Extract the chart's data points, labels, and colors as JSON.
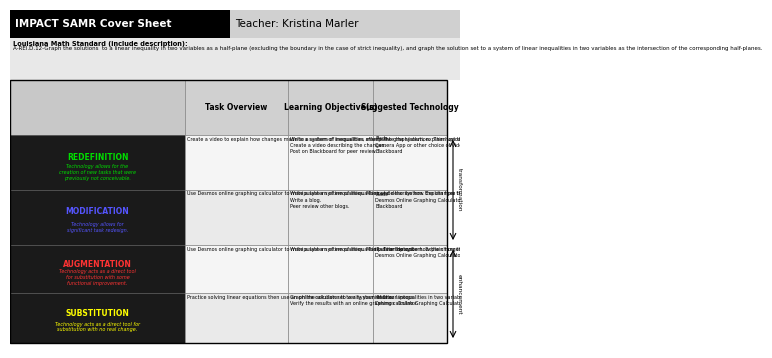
{
  "title_left": "IMPACT SAMR Cover Sheet",
  "title_right": "Teacher: Kristina Marler",
  "standard_label": "Louisiana Math Standard (include description):",
  "standard_text": "A-REI.D.12-Graph the solutions  to a linear inequality in two variables as a half-plane (excluding the boundary in the case of strict inequality), and graph the solution set to a system of linear inequalities in two variables as the intersection of the corresponding half-planes.",
  "col_headers": [
    "Task Overview",
    "Learning Objective(s)",
    "Suggested Technology"
  ],
  "rows": [
    {
      "label": "REDEFINITION",
      "sublabel": "Technology allows for the\ncreation of new tasks that were\npreviously not conceivable.",
      "label_color": "#00dd00",
      "task": "Create a video to explain how changes made to a system of inequalities affects the graph/solution.  Then upload the video to Blackboard for peer evaluation.",
      "objective": "Write a system of inequalities, manipulate the system, explain how the manipulations changed the solution.\nCreate a video describing the changes.\nPost on Blackboard for peer review.",
      "technology": "iPads\nCamera App or other choice of video technology.\nBlackboard"
    },
    {
      "label": "MODIFICATION",
      "sublabel": "Technology allows for\nsignificant task redesign.",
      "label_color": "#5555ff",
      "task": "Use Desmos online graphing calculator to manipulate a system of inequalities and describe how the changes to the system affected the graph/solution.  Then post to Blackboard.",
      "objective": "Write a system of inequalities. Manipulate the system. Explain how the manipulations changed the solution.\nWrite a blog.\nPeer review other blogs.",
      "technology": "iPads\nDesmos Online Graphing Calculator\nBlackboard"
    },
    {
      "label": "AUGMENTATION",
      "sublabel": "Technology acts as a direct tool\nfor substitution with some\nfunctional improvement.",
      "label_color": "#ff3333",
      "task": "Use Desmos online graphing calculator to manipulate a system of inequalities.  Then describe how the changes to the system affected the graph/solution.",
      "objective": "Write a system of inequalities. Manipulate the system. Explain how the manipulations changed the solution.",
      "technology": "iPads or laptops\nDesmos Online Graphing Calculator"
    },
    {
      "label": "SUBSTITUTION",
      "sublabel": "Technology acts as a direct tool for\nsubstitution with no real change.",
      "label_color": "#ffff00",
      "task": "Practice solving linear equations then use an online calculator to verify your results.",
      "objective": "Graph the solution set to a system of linear inequalities in two variables as the intersection of the corresponding half-planes.\nVerify the results with an online graphing calculator.",
      "technology": "iPads or laptops\nDesmos  Online Graphing Calculator"
    }
  ],
  "right_label_top": "transformation",
  "right_label_bottom": "enhancement",
  "bg_dark": "#1a1a1a",
  "header_bg": "#d0d0d0",
  "cell_bg_even": "#f5f5f5",
  "cell_bg_odd": "#eaeaea"
}
